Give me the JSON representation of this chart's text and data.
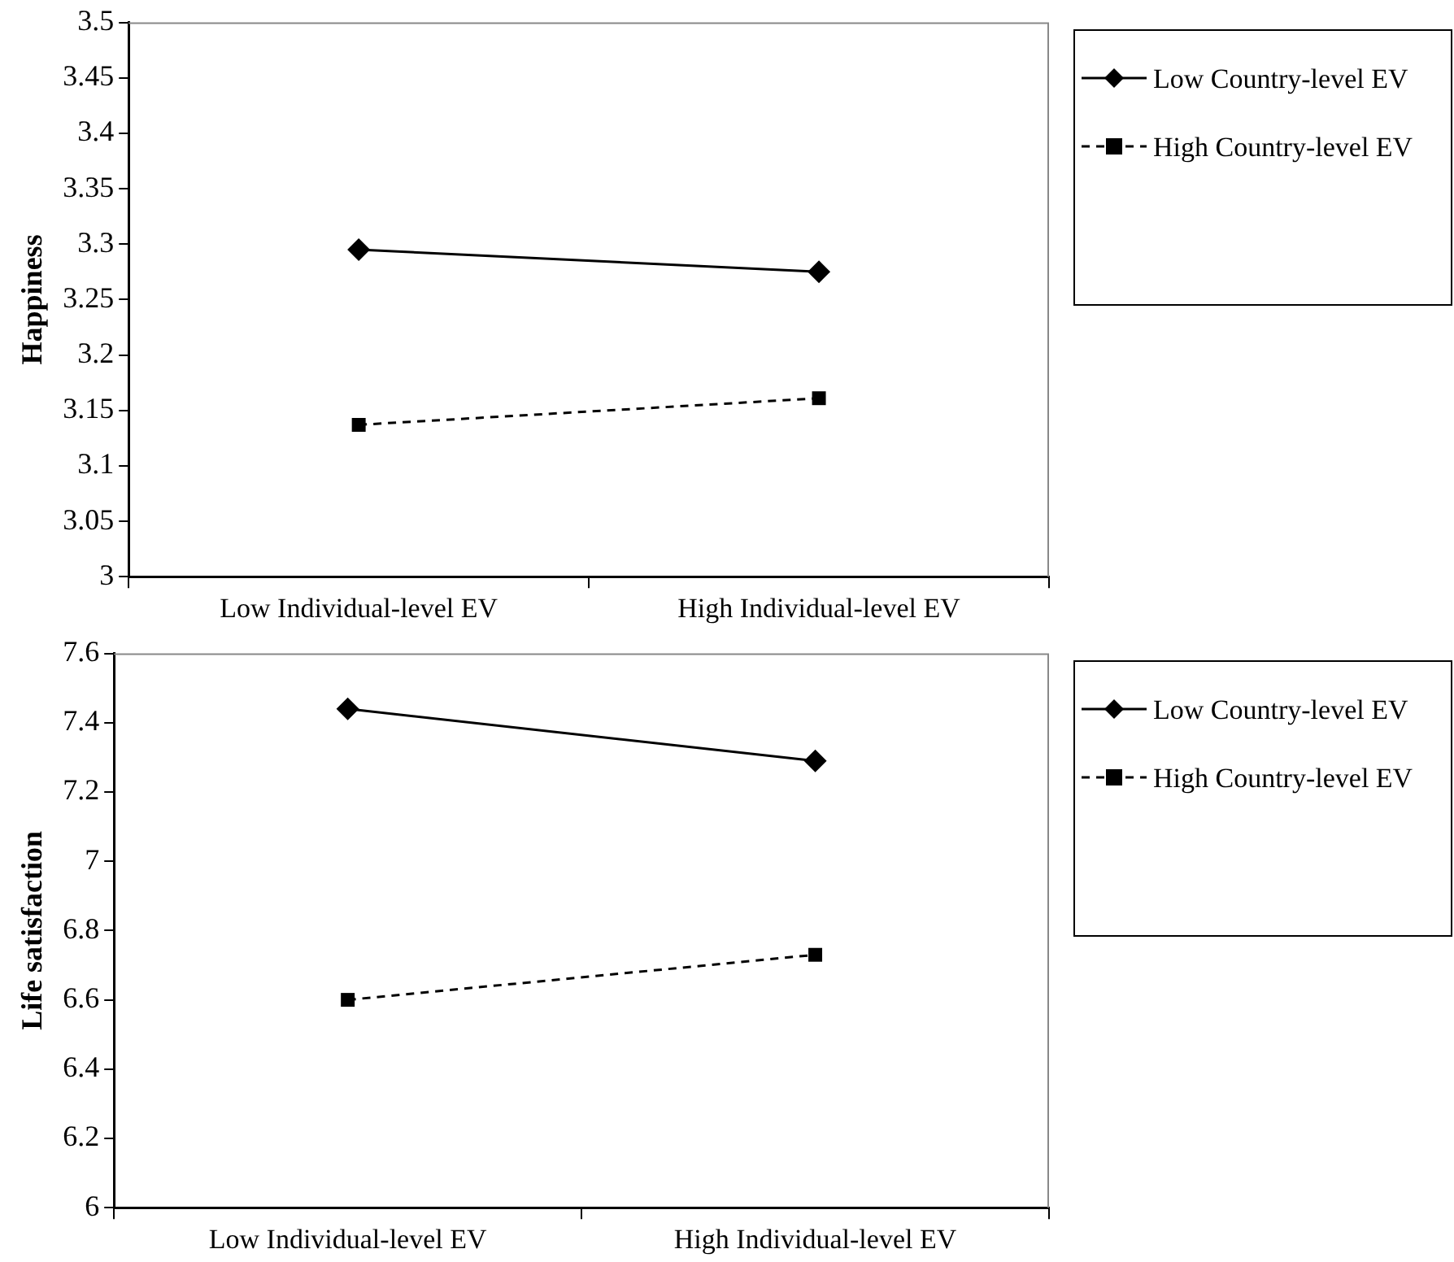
{
  "chart_data": [
    {
      "type": "line",
      "ylabel": "Happiness",
      "categories": [
        "Low Individual-level EV",
        "High Individual-level EV"
      ],
      "ylim": [
        3,
        3.5
      ],
      "yticks": [
        3,
        3.05,
        3.1,
        3.15,
        3.2,
        3.25,
        3.3,
        3.35,
        3.4,
        3.45,
        3.5
      ],
      "grid": false,
      "legend": "right",
      "series": [
        {
          "name": "Low Country-level EV",
          "color": "#000000",
          "values": [
            3.295,
            3.275
          ],
          "marker": "diamond",
          "line_style": "solid"
        },
        {
          "name": "High Country-level EV",
          "color": "#000000",
          "values": [
            3.137,
            3.161
          ],
          "marker": "square",
          "line_style": "dashed"
        }
      ]
    },
    {
      "type": "line",
      "ylabel": "Life satisfaction",
      "categories": [
        "Low Individual-level EV",
        "High Individual-level EV"
      ],
      "ylim": [
        6,
        7.6
      ],
      "yticks": [
        6,
        6.2,
        6.4,
        6.6,
        6.8,
        7,
        7.2,
        7.4,
        7.6
      ],
      "grid": false,
      "legend": "right",
      "series": [
        {
          "name": "Low Country-level EV",
          "color": "#000000",
          "values": [
            7.44,
            7.29
          ],
          "marker": "diamond",
          "line_style": "solid"
        },
        {
          "name": "High Country-level EV",
          "color": "#000000",
          "values": [
            6.6,
            6.73
          ],
          "marker": "square",
          "line_style": "dashed"
        }
      ]
    }
  ]
}
